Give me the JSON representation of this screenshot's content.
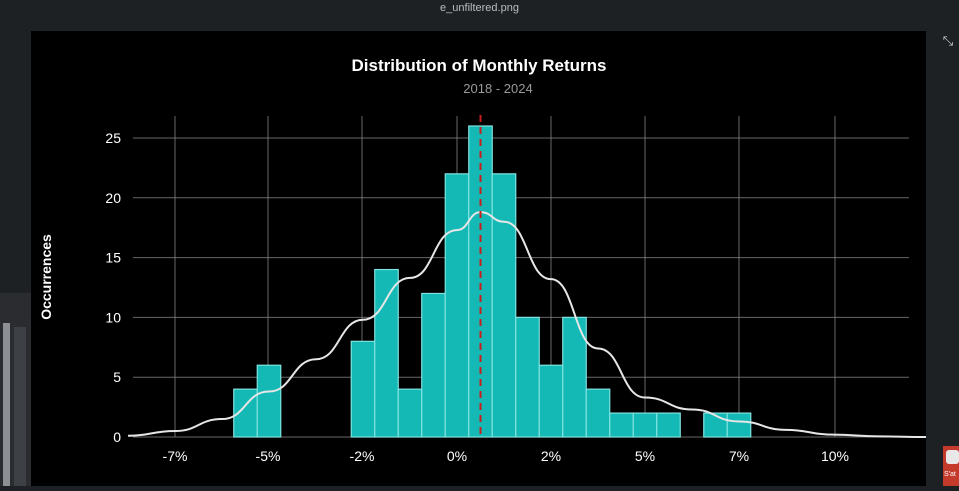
{
  "window": {
    "filename": "e_unfiltered.png",
    "expand_icon": "expand-icon",
    "corner_widget_text": "S'at"
  },
  "colors": {
    "bar_fill": "#14b8b5",
    "bar_edge": "#7fe3e0",
    "mean_line": "#c81e1e",
    "curve": "#e6e6e6",
    "grid": "#8a8a8a",
    "background": "#000000"
  },
  "chart_data": {
    "type": "bar",
    "title": "Distribution of Monthly Returns",
    "subtitle": "2018 - 2024",
    "ylabel": "Occurrences",
    "xlabel": "",
    "x_tick_values": [
      -7,
      -5,
      -2,
      0,
      2,
      5,
      7,
      10
    ],
    "x_tick_labels": [
      "-7%",
      "-5%",
      "-2%",
      "0%",
      "2%",
      "5%",
      "7%",
      "10%"
    ],
    "y_ticks": [
      0,
      5,
      10,
      15,
      20,
      25
    ],
    "ylim": [
      0,
      26
    ],
    "bins": [
      {
        "x0": -4.75,
        "x1": -4.25,
        "count": 4
      },
      {
        "x0": -4.25,
        "x1": -3.75,
        "count": 6
      },
      {
        "x0": -2.25,
        "x1": -1.75,
        "count": 8
      },
      {
        "x0": -1.75,
        "x1": -1.25,
        "count": 14
      },
      {
        "x0": -1.25,
        "x1": -0.75,
        "count": 4
      },
      {
        "x0": -0.75,
        "x1": -0.25,
        "count": 12
      },
      {
        "x0": -0.25,
        "x1": 0.25,
        "count": 22
      },
      {
        "x0": 0.25,
        "x1": 0.75,
        "count": 26
      },
      {
        "x0": 0.75,
        "x1": 1.25,
        "count": 22
      },
      {
        "x0": 1.25,
        "x1": 1.75,
        "count": 10
      },
      {
        "x0": 1.75,
        "x1": 2.25,
        "count": 6
      },
      {
        "x0": 2.25,
        "x1": 2.75,
        "count": 10
      },
      {
        "x0": 2.75,
        "x1": 3.25,
        "count": 4
      },
      {
        "x0": 3.25,
        "x1": 3.75,
        "count": 2
      },
      {
        "x0": 3.75,
        "x1": 4.25,
        "count": 2
      },
      {
        "x0": 4.25,
        "x1": 4.75,
        "count": 2
      },
      {
        "x0": 5.25,
        "x1": 5.75,
        "count": 2
      },
      {
        "x0": 5.75,
        "x1": 6.25,
        "count": 2
      }
    ],
    "mean": 0.5,
    "density_curve": [
      [
        -7,
        0.1
      ],
      [
        -6,
        0.5
      ],
      [
        -5,
        1.5
      ],
      [
        -4,
        3.8
      ],
      [
        -3,
        6.5
      ],
      [
        -2,
        9.8
      ],
      [
        -1,
        13.3
      ],
      [
        0,
        17.3
      ],
      [
        0.5,
        18.8
      ],
      [
        1,
        18.0
      ],
      [
        2,
        13.2
      ],
      [
        3,
        7.4
      ],
      [
        4,
        3.3
      ],
      [
        5,
        2.3
      ],
      [
        6,
        1.3
      ],
      [
        7,
        0.6
      ],
      [
        8,
        0.2
      ],
      [
        9,
        0.05
      ],
      [
        10,
        0.0
      ]
    ],
    "grid": true,
    "legend": "none"
  }
}
